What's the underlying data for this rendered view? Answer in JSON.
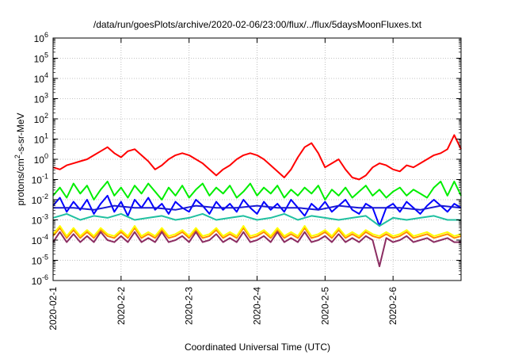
{
  "chart_data": {
    "type": "line",
    "title": "/data/run/goesPlots/archive/2020-02-06/23:00/flux/../flux/5daysMoonFluxes.txt",
    "xlabel": "Coordinated Universal Time (UTC)",
    "ylabel_parts": [
      "protons/cm",
      "2",
      "-s-sr-MeV"
    ],
    "x_ticks": [
      "2020-02-1",
      "2020-2-2",
      "2020-2-3",
      "2020-2-4",
      "2020-2-5",
      "2020-2-6"
    ],
    "xlim_days": [
      0,
      6
    ],
    "yscale": "log",
    "y_ticks": [
      {
        "base": "10",
        "exp": "6"
      },
      {
        "base": "10",
        "exp": "5"
      },
      {
        "base": "10",
        "exp": "4"
      },
      {
        "base": "10",
        "exp": "3"
      },
      {
        "base": "10",
        "exp": "2"
      },
      {
        "base": "10",
        "exp": "1"
      },
      {
        "base": "10",
        "exp": "0"
      },
      {
        "base": "10",
        "exp": "-1"
      },
      {
        "base": "10",
        "exp": "-2"
      },
      {
        "base": "10",
        "exp": "-3"
      },
      {
        "base": "10",
        "exp": "-4"
      },
      {
        "base": "10",
        "exp": "-5"
      },
      {
        "base": "10",
        "exp": "-6"
      }
    ],
    "ylim_log10": [
      -6,
      6
    ],
    "grid": true,
    "series": [
      {
        "color": "#ff0000",
        "x": [
          0,
          0.1,
          0.2,
          0.3,
          0.4,
          0.5,
          0.6,
          0.7,
          0.8,
          0.9,
          1.0,
          1.1,
          1.2,
          1.3,
          1.4,
          1.5,
          1.6,
          1.7,
          1.8,
          1.9,
          2.0,
          2.1,
          2.2,
          2.3,
          2.4,
          2.5,
          2.6,
          2.7,
          2.8,
          2.9,
          3.0,
          3.1,
          3.2,
          3.3,
          3.4,
          3.5,
          3.6,
          3.7,
          3.8,
          3.9,
          4.0,
          4.1,
          4.2,
          4.3,
          4.4,
          4.5,
          4.6,
          4.7,
          4.8,
          4.9,
          5.0,
          5.1,
          5.2,
          5.3,
          5.4,
          5.5,
          5.6,
          5.7,
          5.8,
          5.9,
          6.0
        ],
        "log10y": [
          -0.4,
          -0.5,
          -0.3,
          -0.2,
          -0.1,
          0.0,
          0.2,
          0.4,
          0.6,
          0.3,
          0.1,
          0.4,
          0.5,
          0.2,
          -0.1,
          -0.5,
          -0.3,
          0.0,
          0.2,
          0.3,
          0.2,
          0.0,
          -0.2,
          -0.5,
          -0.8,
          -0.5,
          -0.3,
          0.0,
          0.2,
          0.3,
          0.2,
          0.0,
          -0.3,
          -0.6,
          -0.9,
          -0.5,
          0.1,
          0.6,
          0.8,
          0.3,
          -0.4,
          -0.2,
          0.0,
          -0.5,
          -0.9,
          -1.0,
          -0.8,
          -0.4,
          -0.2,
          -0.3,
          -0.5,
          -0.6,
          -0.3,
          -0.4,
          -0.2,
          0.0,
          0.2,
          0.3,
          0.5,
          1.2,
          0.5
        ]
      },
      {
        "color": "#00ee00",
        "x": [
          0,
          0.1,
          0.2,
          0.3,
          0.4,
          0.5,
          0.6,
          0.7,
          0.8,
          0.9,
          1.0,
          1.1,
          1.2,
          1.3,
          1.4,
          1.5,
          1.6,
          1.7,
          1.8,
          1.9,
          2.0,
          2.1,
          2.2,
          2.3,
          2.4,
          2.5,
          2.6,
          2.7,
          2.8,
          2.9,
          3.0,
          3.1,
          3.2,
          3.3,
          3.4,
          3.5,
          3.6,
          3.7,
          3.8,
          3.9,
          4.0,
          4.1,
          4.2,
          4.3,
          4.4,
          4.5,
          4.6,
          4.7,
          4.8,
          4.9,
          5.0,
          5.1,
          5.2,
          5.3,
          5.4,
          5.5,
          5.6,
          5.7,
          5.8,
          5.9,
          6.0
        ],
        "log10y": [
          -1.8,
          -1.4,
          -1.9,
          -1.2,
          -1.7,
          -1.3,
          -2.0,
          -1.5,
          -1.1,
          -1.8,
          -1.4,
          -1.9,
          -1.3,
          -1.7,
          -1.2,
          -1.6,
          -2.0,
          -1.4,
          -1.8,
          -1.3,
          -1.9,
          -1.5,
          -1.2,
          -1.8,
          -1.4,
          -1.7,
          -1.3,
          -1.9,
          -1.6,
          -1.2,
          -1.8,
          -1.4,
          -1.7,
          -1.3,
          -1.9,
          -1.5,
          -1.8,
          -1.4,
          -1.7,
          -1.3,
          -2.0,
          -1.5,
          -1.8,
          -1.4,
          -1.9,
          -1.6,
          -1.3,
          -1.8,
          -1.5,
          -1.9,
          -1.6,
          -1.4,
          -1.8,
          -1.5,
          -1.7,
          -1.9,
          -1.4,
          -1.1,
          -1.8,
          -1.1,
          -1.8
        ]
      },
      {
        "color": "#0000ff",
        "x": [
          0,
          0.1,
          0.2,
          0.3,
          0.4,
          0.5,
          0.6,
          0.7,
          0.8,
          0.9,
          1.0,
          1.1,
          1.2,
          1.3,
          1.4,
          1.5,
          1.6,
          1.7,
          1.8,
          1.9,
          2.0,
          2.1,
          2.2,
          2.3,
          2.4,
          2.5,
          2.6,
          2.7,
          2.8,
          2.9,
          3.0,
          3.1,
          3.2,
          3.3,
          3.4,
          3.5,
          3.6,
          3.7,
          3.8,
          3.9,
          4.0,
          4.1,
          4.2,
          4.3,
          4.4,
          4.5,
          4.6,
          4.7,
          4.8,
          4.9,
          5.0,
          5.1,
          5.2,
          5.3,
          5.4,
          5.5,
          5.6,
          5.7,
          5.8,
          5.9,
          6.0
        ],
        "log10y": [
          -2.3,
          -1.9,
          -2.6,
          -2.1,
          -2.5,
          -2.0,
          -2.7,
          -2.2,
          -1.8,
          -2.6,
          -2.1,
          -2.8,
          -2.0,
          -2.4,
          -1.9,
          -2.5,
          -2.2,
          -2.7,
          -2.1,
          -2.4,
          -2.6,
          -2.0,
          -2.3,
          -2.7,
          -2.1,
          -2.5,
          -2.2,
          -2.6,
          -2.0,
          -2.4,
          -2.7,
          -2.1,
          -2.5,
          -2.2,
          -2.6,
          -2.0,
          -2.4,
          -2.8,
          -2.2,
          -2.5,
          -2.1,
          -2.6,
          -2.3,
          -2.0,
          -2.5,
          -2.7,
          -2.2,
          -2.4,
          -3.3,
          -2.4,
          -2.2,
          -2.6,
          -2.1,
          -2.4,
          -2.7,
          -2.3,
          -2.0,
          -2.3,
          -2.6,
          -2.2,
          -2.4
        ]
      },
      {
        "color": "#1b1bd4",
        "x": [
          0,
          0.3,
          0.6,
          0.9,
          1.2,
          1.5,
          1.8,
          2.1,
          2.4,
          2.7,
          3.0,
          3.3,
          3.6,
          3.9,
          4.2,
          4.5,
          4.8,
          5.1,
          5.4,
          5.7,
          6.0
        ],
        "log10y": [
          -2.4,
          -2.4,
          -2.5,
          -2.3,
          -2.4,
          -2.4,
          -2.5,
          -2.3,
          -2.4,
          -2.4,
          -2.3,
          -2.4,
          -2.4,
          -2.5,
          -2.3,
          -2.4,
          -2.4,
          -2.4,
          -2.5,
          -2.3,
          -2.4
        ]
      },
      {
        "color": "#20c0a0",
        "x": [
          0,
          0.2,
          0.4,
          0.6,
          0.8,
          1.0,
          1.2,
          1.4,
          1.6,
          1.8,
          2.0,
          2.2,
          2.4,
          2.6,
          2.8,
          3.0,
          3.2,
          3.4,
          3.6,
          3.8,
          4.0,
          4.2,
          4.4,
          4.6,
          4.8,
          5.0,
          5.2,
          5.4,
          5.6,
          5.8,
          6.0
        ],
        "log10y": [
          -2.9,
          -2.7,
          -3.0,
          -2.8,
          -2.9,
          -2.7,
          -3.0,
          -2.9,
          -2.8,
          -3.0,
          -2.9,
          -2.7,
          -3.0,
          -2.9,
          -2.8,
          -3.0,
          -2.9,
          -2.7,
          -3.0,
          -2.8,
          -2.9,
          -3.0,
          -2.9,
          -2.8,
          -3.3,
          -2.9,
          -3.0,
          -2.9,
          -2.8,
          -3.0,
          -3.0
        ]
      },
      {
        "color": "#ff8c00",
        "x": [
          0,
          0.1,
          0.2,
          0.3,
          0.4,
          0.5,
          0.6,
          0.7,
          0.8,
          0.9,
          1.0,
          1.1,
          1.2,
          1.3,
          1.4,
          1.5,
          1.6,
          1.7,
          1.8,
          1.9,
          2.0,
          2.1,
          2.2,
          2.3,
          2.4,
          2.5,
          2.6,
          2.7,
          2.8,
          2.9,
          3.0,
          3.1,
          3.2,
          3.3,
          3.4,
          3.5,
          3.6,
          3.7,
          3.8,
          3.9,
          4.0,
          4.1,
          4.2,
          4.3,
          4.4,
          4.5,
          4.6,
          4.7,
          4.8,
          4.9,
          5.0,
          5.1,
          5.2,
          5.3,
          5.4,
          5.5,
          5.6,
          5.7,
          5.8,
          5.9,
          6.0
        ],
        "log10y": [
          -3.8,
          -3.4,
          -3.9,
          -3.5,
          -3.9,
          -3.6,
          -3.9,
          -3.5,
          -3.8,
          -3.9,
          -3.6,
          -3.9,
          -3.4,
          -3.9,
          -3.7,
          -3.9,
          -3.5,
          -3.9,
          -3.8,
          -3.6,
          -3.9,
          -3.5,
          -3.9,
          -3.8,
          -3.5,
          -3.9,
          -3.7,
          -3.9,
          -3.4,
          -3.9,
          -3.8,
          -3.6,
          -3.9,
          -3.5,
          -3.9,
          -3.7,
          -3.9,
          -3.4,
          -3.9,
          -3.8,
          -3.6,
          -3.9,
          -3.5,
          -3.9,
          -3.7,
          -3.9,
          -3.6,
          -3.8,
          -3.9,
          -3.7,
          -3.9,
          -3.8,
          -3.6,
          -3.9,
          -3.8,
          -3.7,
          -3.9,
          -3.8,
          -3.7,
          -3.9,
          -3.8
        ]
      },
      {
        "color": "#ffff00",
        "x": [
          0,
          0.1,
          0.2,
          0.3,
          0.4,
          0.5,
          0.6,
          0.7,
          0.8,
          0.9,
          1.0,
          1.1,
          1.2,
          1.3,
          1.4,
          1.5,
          1.6,
          1.7,
          1.8,
          1.9,
          2.0,
          2.1,
          2.2,
          2.3,
          2.4,
          2.5,
          2.6,
          2.7,
          2.8,
          2.9,
          3.0,
          3.1,
          3.2,
          3.3,
          3.4,
          3.5,
          3.6,
          3.7,
          3.8,
          3.9,
          4.0,
          4.1,
          4.2,
          4.3,
          4.4,
          4.5,
          4.6,
          4.7,
          4.8,
          4.9,
          5.0,
          5.1,
          5.2,
          5.3,
          5.4,
          5.5,
          5.6,
          5.7,
          5.8,
          5.9,
          6.0
        ],
        "log10y": [
          -3.7,
          -3.3,
          -3.8,
          -3.4,
          -3.8,
          -3.5,
          -3.8,
          -3.4,
          -3.7,
          -3.8,
          -3.5,
          -3.8,
          -3.3,
          -3.8,
          -3.6,
          -3.8,
          -3.4,
          -3.8,
          -3.7,
          -3.5,
          -3.8,
          -3.4,
          -3.8,
          -3.7,
          -3.4,
          -3.8,
          -3.6,
          -3.8,
          -3.3,
          -3.8,
          -3.7,
          -3.5,
          -3.8,
          -3.4,
          -3.8,
          -3.6,
          -3.8,
          -3.3,
          -3.8,
          -3.7,
          -3.5,
          -3.8,
          -3.4,
          -3.8,
          -3.6,
          -3.8,
          -3.5,
          -3.7,
          -3.8,
          -3.6,
          -3.8,
          -3.7,
          -3.5,
          -3.8,
          -3.7,
          -3.6,
          -3.8,
          -3.7,
          -3.6,
          -3.8,
          -3.7
        ]
      },
      {
        "color": "#8b2d62",
        "x": [
          0,
          0.1,
          0.2,
          0.3,
          0.4,
          0.5,
          0.6,
          0.7,
          0.8,
          0.9,
          1.0,
          1.1,
          1.2,
          1.3,
          1.4,
          1.5,
          1.6,
          1.7,
          1.8,
          1.9,
          2.0,
          2.1,
          2.2,
          2.3,
          2.4,
          2.5,
          2.6,
          2.7,
          2.8,
          2.9,
          3.0,
          3.1,
          3.2,
          3.3,
          3.4,
          3.5,
          3.6,
          3.7,
          3.8,
          3.9,
          4.0,
          4.1,
          4.2,
          4.3,
          4.4,
          4.5,
          4.6,
          4.7,
          4.8,
          4.9,
          5.0,
          5.1,
          5.2,
          5.3,
          5.4,
          5.5,
          5.6,
          5.7,
          5.8,
          5.9,
          6.0
        ],
        "log10y": [
          -4.1,
          -3.6,
          -4.1,
          -3.7,
          -4.1,
          -3.8,
          -4.1,
          -3.6,
          -4.0,
          -4.1,
          -3.8,
          -4.1,
          -3.6,
          -4.1,
          -3.9,
          -4.1,
          -3.6,
          -4.1,
          -4.0,
          -3.8,
          -4.1,
          -3.6,
          -4.1,
          -4.0,
          -3.7,
          -4.1,
          -3.9,
          -4.1,
          -3.6,
          -4.1,
          -4.0,
          -3.8,
          -4.1,
          -3.6,
          -4.1,
          -3.9,
          -4.1,
          -3.6,
          -4.1,
          -4.0,
          -3.8,
          -4.1,
          -3.7,
          -4.1,
          -3.9,
          -4.1,
          -3.8,
          -4.0,
          -5.3,
          -3.9,
          -4.1,
          -4.0,
          -3.8,
          -4.1,
          -4.0,
          -3.9,
          -4.1,
          -4.0,
          -3.9,
          -4.1,
          -4.1
        ]
      }
    ]
  }
}
